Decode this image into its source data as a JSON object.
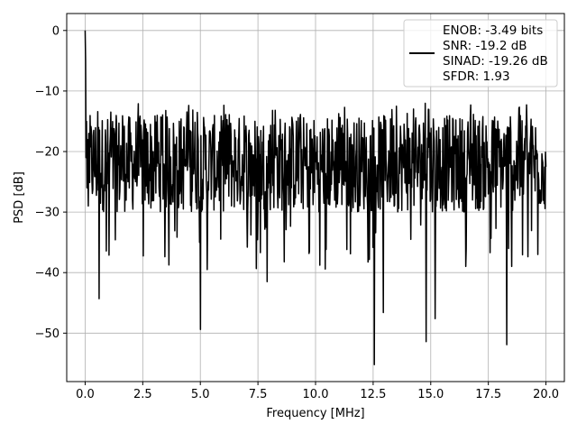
{
  "chart_data": {
    "type": "line",
    "title": "",
    "xlabel": "Frequency [MHz]",
    "ylabel": "PSD [dB]",
    "xlim": [
      -0.8,
      20.8
    ],
    "ylim": [
      -58,
      2.8
    ],
    "grid": true,
    "x_ticks": [
      0.0,
      2.5,
      5.0,
      7.5,
      10.0,
      12.5,
      15.0,
      17.5,
      20.0
    ],
    "x_tick_labels": [
      "0.0",
      "2.5",
      "5.0",
      "7.5",
      "10.0",
      "12.5",
      "15.0",
      "17.5",
      "20.0"
    ],
    "y_ticks": [
      0,
      -10,
      -20,
      -30,
      -40,
      -50
    ],
    "y_tick_labels": [
      "0",
      "−10",
      "−20",
      "−30",
      "−40",
      "−50"
    ],
    "legend": {
      "placement": "top-right",
      "entries": [
        "ENOB: -3.49 bits",
        "SNR: -19.2 dB",
        "SINAD: -19.26 dB",
        "SFDR: 1.93"
      ]
    },
    "series": [
      {
        "color": "#000000",
        "x_start": 0.0,
        "x_end": 20.0,
        "num_points": 1024,
        "peak": {
          "x": 0.0,
          "y": 0.0
        },
        "baseline_range": [
          -30,
          -14
        ],
        "values_sample": [
          0.0,
          -5.0,
          -21.0,
          -15.0,
          -26.0,
          -18.0,
          -22.0,
          -29.0,
          -17.0,
          -20.0
        ],
        "minimum": {
          "x": 12.55,
          "y": -55.2
        },
        "notable_dips": [
          {
            "x": 0.6,
            "y": -44.3
          },
          {
            "x": 5.0,
            "y": -49.4
          },
          {
            "x": 5.3,
            "y": -39.5
          },
          {
            "x": 7.9,
            "y": -41.5
          },
          {
            "x": 12.95,
            "y": -46.6
          },
          {
            "x": 14.8,
            "y": -51.4
          },
          {
            "x": 15.2,
            "y": -47.6
          },
          {
            "x": 18.3,
            "y": -51.9
          }
        ]
      }
    ]
  }
}
